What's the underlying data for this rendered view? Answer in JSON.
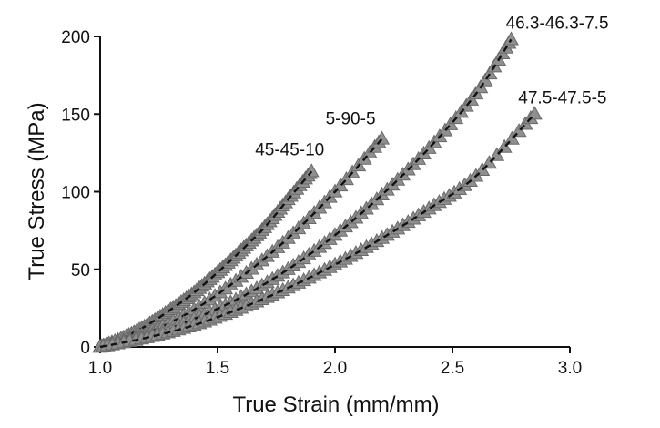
{
  "chart_data": {
    "type": "scatter",
    "title": "",
    "xlabel": "True Strain (mm/mm)",
    "ylabel": "True Stress (MPa)",
    "xlim": [
      1.0,
      3.0
    ],
    "ylim": [
      0,
      200
    ],
    "xticks": [
      "1.0",
      "1.5",
      "2.0",
      "2.5",
      "3.0"
    ],
    "yticks": [
      "0",
      "50",
      "100",
      "150",
      "200"
    ],
    "grid": false,
    "marker": "triangle",
    "fit_line_style": "dashed",
    "colors": {
      "marker": "#8f8f8f",
      "fit_line": "#111111"
    },
    "series": [
      {
        "name": "45-45-10",
        "x": [
          1.0,
          1.1,
          1.2,
          1.3,
          1.4,
          1.5,
          1.6,
          1.7,
          1.8,
          1.9
        ],
        "y": [
          0,
          6,
          14,
          24,
          35,
          48,
          62,
          77,
          95,
          113
        ]
      },
      {
        "name": "5-90-5",
        "x": [
          1.0,
          1.2,
          1.4,
          1.6,
          1.8,
          2.0,
          2.2
        ],
        "y": [
          0,
          9,
          24,
          45,
          70,
          100,
          134
        ]
      },
      {
        "name": "46.3-46.3-7.5",
        "x": [
          1.0,
          1.2,
          1.4,
          1.6,
          1.8,
          2.0,
          2.2,
          2.4,
          2.6,
          2.75
        ],
        "y": [
          0,
          7,
          18,
          32,
          50,
          72,
          98,
          128,
          163,
          198
        ]
      },
      {
        "name": "47.5-47.5-5",
        "x": [
          1.0,
          1.2,
          1.4,
          1.6,
          1.8,
          2.0,
          2.2,
          2.4,
          2.6,
          2.85
        ],
        "y": [
          0,
          6,
          14,
          25,
          38,
          53,
          70,
          89,
          110,
          150
        ]
      }
    ]
  }
}
